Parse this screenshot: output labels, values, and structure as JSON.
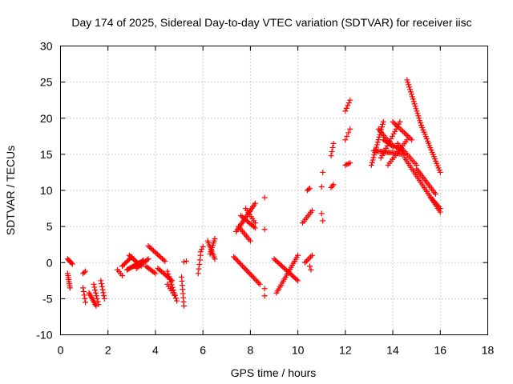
{
  "chart_data": {
    "type": "scatter",
    "title": "Day 174 of 2025, Sidereal Day-to-day VTEC variation (SDTVAR) for receiver iisc",
    "xlabel": "GPS time / hours",
    "ylabel": "SDTVAR / TECUs",
    "xlim": [
      0,
      18
    ],
    "ylim": [
      -10,
      30
    ],
    "xticks": [
      "0",
      "2",
      "4",
      "6",
      "8",
      "10",
      "12",
      "14",
      "16",
      "18"
    ],
    "yticks": [
      "-10",
      "-5",
      "0",
      "5",
      "10",
      "15",
      "20",
      "25",
      "30"
    ],
    "grid": true,
    "marker": "+",
    "color": "#ff0000",
    "segments": [
      {
        "x0": 0.3,
        "y0": 0.5,
        "x1": 0.5,
        "y1": -0.2,
        "n": 6
      },
      {
        "x0": 0.3,
        "y0": -1.5,
        "x1": 0.4,
        "y1": -3.5,
        "n": 8
      },
      {
        "x0": 0.95,
        "y0": -1.5,
        "x1": 1.05,
        "y1": -1.2,
        "n": 3
      },
      {
        "x0": 0.95,
        "y0": -3.5,
        "x1": 1.05,
        "y1": -5.5,
        "n": 5
      },
      {
        "x0": 1.2,
        "y0": -4.2,
        "x1": 1.5,
        "y1": -6.0,
        "n": 10
      },
      {
        "x0": 1.4,
        "y0": -3.0,
        "x1": 1.6,
        "y1": -5.8,
        "n": 8
      },
      {
        "x0": 1.7,
        "y0": -2.5,
        "x1": 1.85,
        "y1": -5.0,
        "n": 7
      },
      {
        "x0": 2.4,
        "y0": -1.0,
        "x1": 2.6,
        "y1": -1.8,
        "n": 4
      },
      {
        "x0": 2.6,
        "y0": -0.5,
        "x1": 3.0,
        "y1": 0.8,
        "n": 9
      },
      {
        "x0": 2.8,
        "y0": -1.0,
        "x1": 3.5,
        "y1": 0.3,
        "n": 16
      },
      {
        "x0": 2.9,
        "y0": 1.0,
        "x1": 3.4,
        "y1": -0.5,
        "n": 12
      },
      {
        "x0": 3.2,
        "y0": -0.8,
        "x1": 3.7,
        "y1": 0.5,
        "n": 10
      },
      {
        "x0": 3.6,
        "y0": -0.5,
        "x1": 4.0,
        "y1": -1.5,
        "n": 8
      },
      {
        "x0": 3.7,
        "y0": 2.3,
        "x1": 4.4,
        "y1": 0.2,
        "n": 14
      },
      {
        "x0": 4.1,
        "y0": -0.8,
        "x1": 4.7,
        "y1": -2.5,
        "n": 12
      },
      {
        "x0": 4.5,
        "y0": -1.2,
        "x1": 4.9,
        "y1": -5.3,
        "n": 12
      },
      {
        "x0": 4.5,
        "y0": -3.0,
        "x1": 4.8,
        "y1": -4.5,
        "n": 6
      },
      {
        "x0": 5.1,
        "y0": -2.0,
        "x1": 5.2,
        "y1": -6.0,
        "n": 8
      },
      {
        "x0": 5.2,
        "y0": 0.1,
        "x1": 5.3,
        "y1": 0.2,
        "n": 2
      },
      {
        "x0": 5.8,
        "y0": -1.5,
        "x1": 5.9,
        "y1": 1.0,
        "n": 5
      },
      {
        "x0": 5.9,
        "y0": 1.5,
        "x1": 6.0,
        "y1": 2.2,
        "n": 3
      },
      {
        "x0": 6.2,
        "y0": 3.0,
        "x1": 6.5,
        "y1": 0.5,
        "n": 10
      },
      {
        "x0": 6.3,
        "y0": 1.2,
        "x1": 6.5,
        "y1": 3.3,
        "n": 8
      },
      {
        "x0": 7.3,
        "y0": 0.8,
        "x1": 8.4,
        "y1": -3.0,
        "n": 22
      },
      {
        "x0": 7.4,
        "y0": 4.3,
        "x1": 8.2,
        "y1": 8.2,
        "n": 18
      },
      {
        "x0": 7.5,
        "y0": 5.0,
        "x1": 8.0,
        "y1": 3.0,
        "n": 10
      },
      {
        "x0": 7.6,
        "y0": 6.5,
        "x1": 8.2,
        "y1": 4.8,
        "n": 12
      },
      {
        "x0": 7.8,
        "y0": 7.5,
        "x1": 8.2,
        "y1": 5.5,
        "n": 8
      },
      {
        "x0": 8.6,
        "y0": -3.6,
        "x1": 8.6,
        "y1": -4.6,
        "n": 2
      },
      {
        "x0": 8.6,
        "y0": 4.6,
        "x1": 8.6,
        "y1": 9.0,
        "n": 2
      },
      {
        "x0": 9.0,
        "y0": 0.5,
        "x1": 10.0,
        "y1": -2.5,
        "n": 20
      },
      {
        "x0": 9.1,
        "y0": -4.2,
        "x1": 10.0,
        "y1": 1.0,
        "n": 20
      },
      {
        "x0": 10.3,
        "y0": 0.0,
        "x1": 10.6,
        "y1": 1.0,
        "n": 6
      },
      {
        "x0": 10.2,
        "y0": 5.5,
        "x1": 10.6,
        "y1": 7.2,
        "n": 8
      },
      {
        "x0": 10.4,
        "y0": 10.0,
        "x1": 10.5,
        "y1": 10.3,
        "n": 3
      },
      {
        "x0": 10.5,
        "y0": -0.5,
        "x1": 10.55,
        "y1": -1.0,
        "n": 2
      },
      {
        "x0": 11.0,
        "y0": 6.8,
        "x1": 11.05,
        "y1": 5.8,
        "n": 2
      },
      {
        "x0": 11.0,
        "y0": 10.5,
        "x1": 11.05,
        "y1": 12.5,
        "n": 2
      },
      {
        "x0": 11.4,
        "y0": 10.4,
        "x1": 11.5,
        "y1": 10.8,
        "n": 3
      },
      {
        "x0": 11.4,
        "y0": 14.8,
        "x1": 11.5,
        "y1": 16.5,
        "n": 4
      },
      {
        "x0": 12.0,
        "y0": 13.5,
        "x1": 12.2,
        "y1": 13.8,
        "n": 4
      },
      {
        "x0": 12.0,
        "y0": 17.0,
        "x1": 12.2,
        "y1": 18.5,
        "n": 4
      },
      {
        "x0": 12.0,
        "y0": 21.0,
        "x1": 12.2,
        "y1": 22.5,
        "n": 5
      },
      {
        "x0": 13.1,
        "y0": 13.5,
        "x1": 13.6,
        "y1": 19.5,
        "n": 18
      },
      {
        "x0": 13.2,
        "y0": 15.5,
        "x1": 14.5,
        "y1": 15.0,
        "n": 24
      },
      {
        "x0": 13.4,
        "y0": 18.5,
        "x1": 14.0,
        "y1": 16.0,
        "n": 12
      },
      {
        "x0": 13.5,
        "y0": 14.5,
        "x1": 14.3,
        "y1": 19.5,
        "n": 16
      },
      {
        "x0": 13.6,
        "y0": 17.0,
        "x1": 14.4,
        "y1": 15.5,
        "n": 14
      },
      {
        "x0": 13.8,
        "y0": 13.5,
        "x1": 14.6,
        "y1": 17.0,
        "n": 14
      },
      {
        "x0": 14.0,
        "y0": 19.5,
        "x1": 14.8,
        "y1": 17.0,
        "n": 14
      },
      {
        "x0": 14.2,
        "y0": 16.5,
        "x1": 15.0,
        "y1": 13.5,
        "n": 14
      },
      {
        "x0": 14.5,
        "y0": 14.5,
        "x1": 16.0,
        "y1": 7.0,
        "n": 30
      },
      {
        "x0": 14.6,
        "y0": 25.3,
        "x1": 15.2,
        "y1": 19.0,
        "n": 20
      },
      {
        "x0": 15.2,
        "y0": 19.0,
        "x1": 16.0,
        "y1": 12.5,
        "n": 22
      },
      {
        "x0": 15.0,
        "y0": 13.0,
        "x1": 15.8,
        "y1": 9.5,
        "n": 16
      },
      {
        "x0": 15.6,
        "y0": 9.0,
        "x1": 16.0,
        "y1": 7.5,
        "n": 8
      }
    ]
  }
}
